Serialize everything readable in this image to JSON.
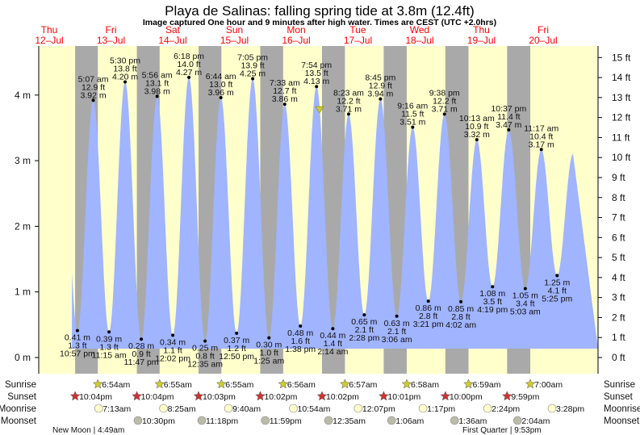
{
  "header": {
    "title": "Playa de Salinas: falling  spring tide at 3.8m (12.4ft)",
    "subtitle": "Image captured One hour and 9 minutes after high water. Times are CEST (UTC +2.0hrs)"
  },
  "days": [
    {
      "day": 12,
      "dow": "Thu",
      "date": "12–Jul"
    },
    {
      "day": 13,
      "dow": "Fri",
      "date": "13–Jul"
    },
    {
      "day": 14,
      "dow": "Sat",
      "date": "14–Jul"
    },
    {
      "day": 15,
      "dow": "Sun",
      "date": "15–Jul"
    },
    {
      "day": 16,
      "dow": "Mon",
      "date": "16–Jul"
    },
    {
      "day": 17,
      "dow": "Tue",
      "date": "17–Jul"
    },
    {
      "day": 18,
      "dow": "Wed",
      "date": "18–Jul"
    },
    {
      "day": 19,
      "dow": "Thu",
      "date": "19–Jul"
    },
    {
      "day": 20,
      "dow": "Fri",
      "date": "20–Jul"
    }
  ],
  "chart_data": {
    "type": "area",
    "title": "Playa de Salinas: falling  spring tide at 3.8m (12.4ft)",
    "ylabel_left": "m",
    "ylabel_right": "ft",
    "ylim_m": [
      0,
      4.8
    ],
    "y_ticks_m": [
      "0 m",
      "1 m",
      "2 m",
      "3 m",
      "4 m"
    ],
    "y_ticks_ft": [
      "0 ft",
      "1 ft",
      "2 ft",
      "3 ft",
      "4 ft",
      "5 ft",
      "6 ft",
      "7 ft",
      "8 ft",
      "9 ft",
      "10 ft",
      "11 ft",
      "12 ft",
      "13 ft",
      "14 ft",
      "15 ft"
    ],
    "current": {
      "day": 16,
      "time": "9:03 pm",
      "height_m": 3.8
    },
    "extremes": [
      {
        "type": "low",
        "day": 12,
        "time": "10:57 pm",
        "m": "0.41 m",
        "ft": "1.3 ft",
        "value": 0.41
      },
      {
        "type": "high",
        "day": 13,
        "time": "5:07 am",
        "m": "3.92 m",
        "ft": "12.9 ft",
        "value": 3.92
      },
      {
        "type": "low",
        "day": 13,
        "time": "11:15 am",
        "m": "0.39 m",
        "ft": "1.3 ft",
        "value": 0.39
      },
      {
        "type": "high",
        "day": 13,
        "time": "5:30 pm",
        "m": "4.20 m",
        "ft": "13.8 ft",
        "value": 4.2
      },
      {
        "type": "low",
        "day": 13,
        "time": "11:47 pm",
        "m": "0.28 m",
        "ft": "0.9 ft",
        "value": 0.28
      },
      {
        "type": "high",
        "day": 14,
        "time": "5:56 am",
        "m": "3.98 m",
        "ft": "13.1 ft",
        "value": 3.98
      },
      {
        "type": "low",
        "day": 14,
        "time": "12:02 pm",
        "m": "0.34 m",
        "ft": "1.1 ft",
        "value": 0.34
      },
      {
        "type": "high",
        "day": 14,
        "time": "6:18 pm",
        "m": "4.27 m",
        "ft": "14.0 ft",
        "value": 4.27
      },
      {
        "type": "low",
        "day": 15,
        "time": "12:35 am",
        "m": "0.25 m",
        "ft": "0.8 ft",
        "value": 0.25
      },
      {
        "type": "high",
        "day": 15,
        "time": "6:44 am",
        "m": "3.96 m",
        "ft": "13.0 ft",
        "value": 3.96
      },
      {
        "type": "low",
        "day": 15,
        "time": "12:50 pm",
        "m": "0.37 m",
        "ft": "1.2 ft",
        "value": 0.37
      },
      {
        "type": "high",
        "day": 15,
        "time": "7:05 pm",
        "m": "4.25 m",
        "ft": "13.9 ft",
        "value": 4.25
      },
      {
        "type": "low",
        "day": 16,
        "time": "1:25 am",
        "m": "0.30 m",
        "ft": "1.0 ft",
        "value": 0.3
      },
      {
        "type": "high",
        "day": 16,
        "time": "7:33 am",
        "m": "3.86 m",
        "ft": "12.7 ft",
        "value": 3.86
      },
      {
        "type": "low",
        "day": 16,
        "time": "1:38 pm",
        "m": "0.48 m",
        "ft": "1.6 ft",
        "value": 0.48
      },
      {
        "type": "high",
        "day": 16,
        "time": "7:54 pm",
        "m": "4.13 m",
        "ft": "13.5 ft",
        "value": 4.13
      },
      {
        "type": "low",
        "day": 17,
        "time": "2:14 am",
        "m": "0.44 m",
        "ft": "1.4 ft",
        "value": 0.44
      },
      {
        "type": "high",
        "day": 17,
        "time": "8:23 am",
        "m": "3.71 m",
        "ft": "12.2 ft",
        "value": 3.71
      },
      {
        "type": "low",
        "day": 17,
        "time": "2:28 pm",
        "m": "0.65 m",
        "ft": "2.1 ft",
        "value": 0.65
      },
      {
        "type": "high",
        "day": 17,
        "time": "8:45 pm",
        "m": "3.94 m",
        "ft": "12.9 ft",
        "value": 3.94
      },
      {
        "type": "low",
        "day": 18,
        "time": "3:06 am",
        "m": "0.63 m",
        "ft": "2.1 ft",
        "value": 0.63
      },
      {
        "type": "high",
        "day": 18,
        "time": "9:16 am",
        "m": "3.51 m",
        "ft": "11.5 ft",
        "value": 3.51
      },
      {
        "type": "low",
        "day": 18,
        "time": "3:21 pm",
        "m": "0.86 m",
        "ft": "2.8 ft",
        "value": 0.86
      },
      {
        "type": "high",
        "day": 18,
        "time": "9:38 pm",
        "m": "3.71 m",
        "ft": "12.2 ft",
        "value": 3.71
      },
      {
        "type": "low",
        "day": 19,
        "time": "4:02 am",
        "m": "0.85 m",
        "ft": "2.8 ft",
        "value": 0.85
      },
      {
        "type": "high",
        "day": 19,
        "time": "10:13 am",
        "m": "3.32 m",
        "ft": "10.9 ft",
        "value": 3.32
      },
      {
        "type": "low",
        "day": 19,
        "time": "4:19 pm",
        "m": "1.08 m",
        "ft": "3.5 ft",
        "value": 1.08
      },
      {
        "type": "high",
        "day": 19,
        "time": "10:37 pm",
        "m": "3.47 m",
        "ft": "11.4 ft",
        "value": 3.47
      },
      {
        "type": "low",
        "day": 20,
        "time": "5:03 am",
        "m": "1.05 m",
        "ft": "3.4 ft",
        "value": 1.05
      },
      {
        "type": "high",
        "day": 20,
        "time": "11:17 am",
        "m": "3.17 m",
        "ft": "10.4 ft",
        "value": 3.17
      },
      {
        "type": "low",
        "day": 20,
        "time": "5:25 pm",
        "m": "1.25 m",
        "ft": "4.1 ft",
        "value": 1.25
      }
    ]
  },
  "rows": {
    "sunrise_label": "Sunrise",
    "sunset_label": "Sunset",
    "moonrise_label": "Moonrise",
    "moonset_label": "Moonset",
    "sunrise": [
      {
        "day": 13,
        "time": "6:54am"
      },
      {
        "day": 14,
        "time": "6:55am"
      },
      {
        "day": 15,
        "time": "6:55am"
      },
      {
        "day": 16,
        "time": "6:56am"
      },
      {
        "day": 17,
        "time": "6:57am"
      },
      {
        "day": 18,
        "time": "6:58am"
      },
      {
        "day": 19,
        "time": "6:59am"
      },
      {
        "day": 20,
        "time": "7:00am"
      }
    ],
    "sunset": [
      {
        "day": 12,
        "time": "10:04pm"
      },
      {
        "day": 13,
        "time": "10:04pm"
      },
      {
        "day": 14,
        "time": "10:03pm"
      },
      {
        "day": 15,
        "time": "10:02pm"
      },
      {
        "day": 16,
        "time": "10:02pm"
      },
      {
        "day": 17,
        "time": "10:01pm"
      },
      {
        "day": 18,
        "time": "10:00pm"
      },
      {
        "day": 19,
        "time": "9:59pm"
      }
    ],
    "moonrise": [
      {
        "day": 13,
        "time": "7:13am"
      },
      {
        "day": 14,
        "time": "8:25am"
      },
      {
        "day": 15,
        "time": "9:40am"
      },
      {
        "day": 16,
        "time": "10:54am"
      },
      {
        "day": 17,
        "time": "12:07pm"
      },
      {
        "day": 18,
        "time": "1:17pm"
      },
      {
        "day": 19,
        "time": "2:24pm"
      },
      {
        "day": 20,
        "time": "3:28pm"
      }
    ],
    "moonset": [
      {
        "day": 13,
        "time": "10:30pm"
      },
      {
        "day": 14,
        "time": "11:18pm"
      },
      {
        "day": 15,
        "time": "11:59pm"
      },
      {
        "day": 17,
        "time": "12:35am"
      },
      {
        "day": 18,
        "time": "1:06am"
      },
      {
        "day": 19,
        "time": "1:36am"
      },
      {
        "day": 20,
        "time": "2:04am"
      }
    ],
    "phases": [
      {
        "day": 12,
        "label": "New Moon | 4:49am"
      },
      {
        "day": 19,
        "label": "First Quarter | 9:53pm"
      }
    ]
  },
  "colors": {
    "day": "#ffffcc",
    "night": "#a9a9a9",
    "water": "#a0b4ff",
    "sunrise": "#cccc33",
    "sunset": "#cc3333",
    "moonrise": "#ffffcc",
    "moonset": "#bbbbaa",
    "date": "#ff0000"
  }
}
